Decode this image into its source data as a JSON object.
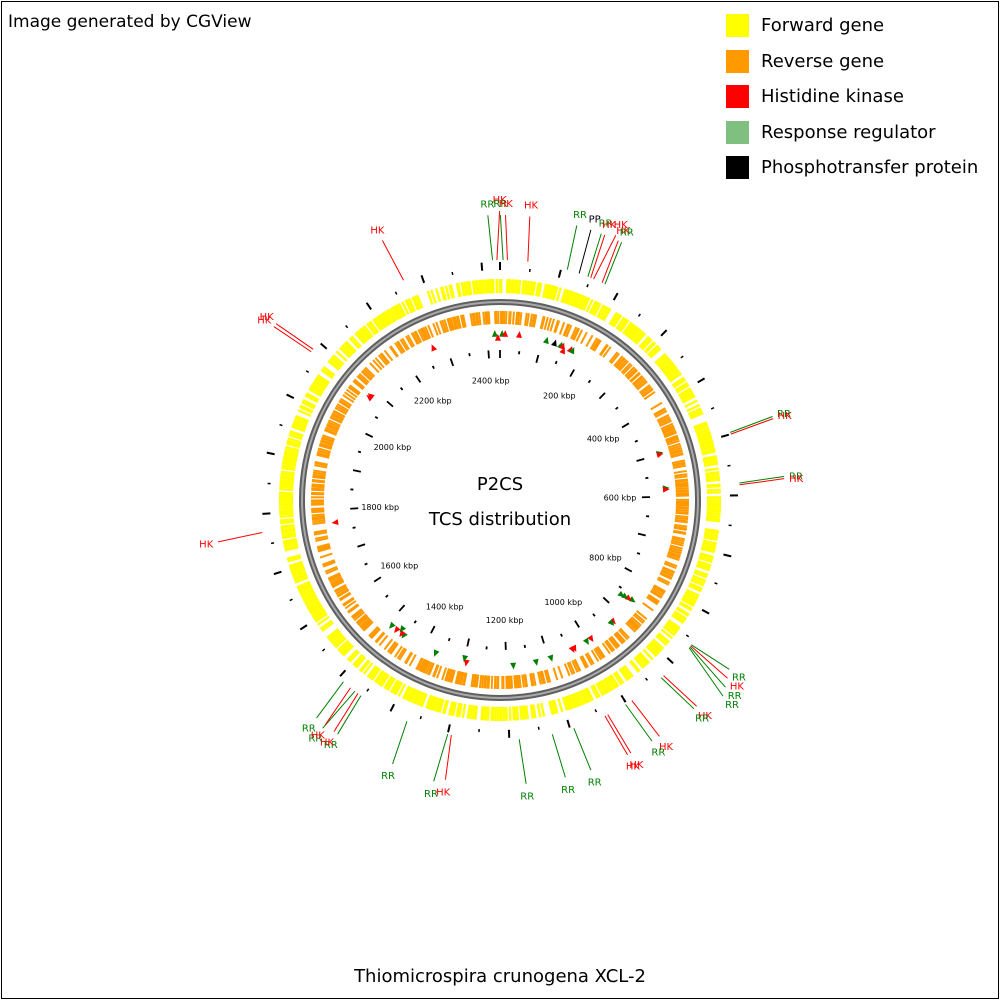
{
  "credit": "Image generated by CGView",
  "legend": [
    {
      "label": "Forward gene",
      "color": "#ffff00"
    },
    {
      "label": "Reverse gene",
      "color": "#ff9900"
    },
    {
      "label": "Histidine kinase",
      "color": "#ff0000"
    },
    {
      "label": "Response regulator",
      "color": "#7fbf7f"
    },
    {
      "label": "Phosphotransfer protein",
      "color": "#000000"
    }
  ],
  "center_title": "P2CS",
  "center_subtitle": "TCS distribution",
  "organism": "Thiomicrospira crunogena XCL-2",
  "genome_length_kbp": 2430,
  "tick_label_unit": "kbp",
  "tick_labels_kbp": [
    200,
    400,
    600,
    800,
    1000,
    1200,
    1400,
    1600,
    1800,
    2000,
    2200,
    2400
  ],
  "colors": {
    "backbone": "#7f7f7f",
    "histidine_kinase_label": "#ff0000",
    "response_regulator_label": "#008000",
    "phosphotransfer_label": "#000000",
    "response_regulator_marker": "#008000"
  },
  "labels_approx_kbp": [
    {
      "text": "RR",
      "kind": "RR",
      "kbp": 2418
    },
    {
      "text": "HK",
      "kind": "HK",
      "kbp": 2425
    },
    {
      "text": "RR",
      "kind": "RR",
      "kbp": 5
    },
    {
      "text": "HK",
      "kind": "HK",
      "kbp": 12
    },
    {
      "text": "HK",
      "kind": "HK",
      "kbp": 45
    },
    {
      "text": "RR",
      "kind": "RR",
      "kbp": 110
    },
    {
      "text": "PP",
      "kind": "PP",
      "kbp": 130
    },
    {
      "text": "RR",
      "kind": "RR",
      "kbp": 145
    },
    {
      "text": "HK",
      "kind": "HK",
      "kbp": 150
    },
    {
      "text": "HK",
      "kind": "HK",
      "kbp": 155
    },
    {
      "text": "HK",
      "kind": "HK",
      "kbp": 170
    },
    {
      "text": "RR",
      "kind": "RR",
      "kbp": 175
    },
    {
      "text": "RR",
      "kind": "RR",
      "kbp": 497
    },
    {
      "text": "HK",
      "kind": "HK",
      "kbp": 500
    },
    {
      "text": "RR",
      "kind": "RR",
      "kbp": 580
    },
    {
      "text": "HK",
      "kind": "HK",
      "kbp": 583
    },
    {
      "text": "RR",
      "kind": "RR",
      "kbp": 858
    },
    {
      "text": "HK",
      "kind": "HK",
      "kbp": 860
    },
    {
      "text": "RR",
      "kind": "RR",
      "kbp": 862
    },
    {
      "text": "RR",
      "kind": "RR",
      "kbp": 864
    },
    {
      "text": "HK",
      "kind": "HK",
      "kbp": 925
    },
    {
      "text": "RR",
      "kind": "RR",
      "kbp": 930
    },
    {
      "text": "HK",
      "kind": "HK",
      "kbp": 990
    },
    {
      "text": "RR",
      "kind": "RR",
      "kbp": 1002
    },
    {
      "text": "HK",
      "kind": "HK",
      "kbp": 1035
    },
    {
      "text": "HK",
      "kind": "HK",
      "kbp": 1040
    },
    {
      "text": "RR",
      "kind": "RR",
      "kbp": 1094
    },
    {
      "text": "RR",
      "kind": "RR",
      "kbp": 1130
    },
    {
      "text": "RR",
      "kind": "RR",
      "kbp": 1184
    },
    {
      "text": "HK",
      "kind": "HK",
      "kbp": 1294
    },
    {
      "text": "RR",
      "kind": "RR",
      "kbp": 1300
    },
    {
      "text": "RR",
      "kind": "RR",
      "kbp": 1369
    },
    {
      "text": "RR",
      "kind": "RR",
      "kbp": 1454
    },
    {
      "text": "HK",
      "kind": "HK",
      "kbp": 1460
    },
    {
      "text": "RR",
      "kind": "RR",
      "kbp": 1466
    },
    {
      "text": "HK",
      "kind": "HK",
      "kbp": 1475
    },
    {
      "text": "RR",
      "kind": "RR",
      "kbp": 1490
    },
    {
      "text": "HK",
      "kind": "HK",
      "kbp": 1770
    },
    {
      "text": "HK",
      "kind": "HK",
      "kbp": 2080
    },
    {
      "text": "HK",
      "kind": "HK",
      "kbp": 2085
    },
    {
      "text": "HK",
      "kind": "HK",
      "kbp": 2270
    }
  ]
}
